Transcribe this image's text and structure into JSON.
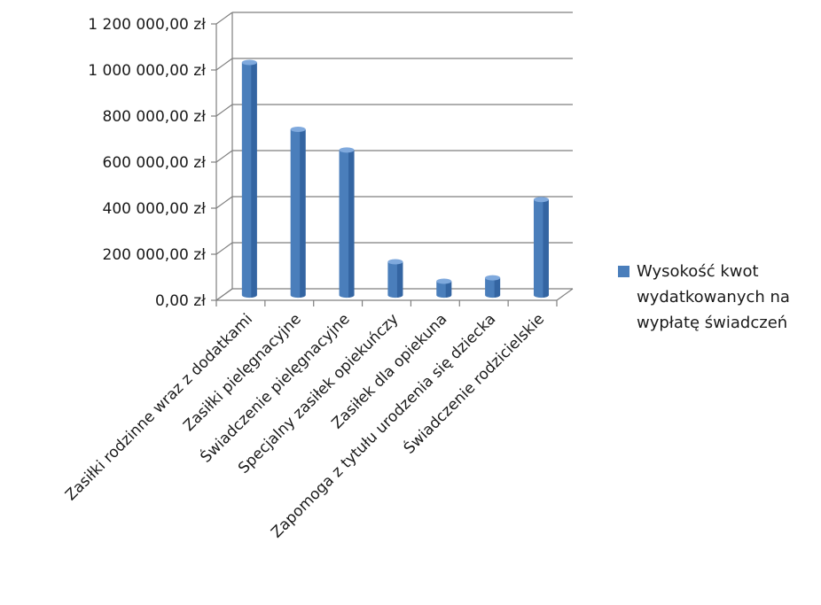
{
  "colors": {
    "bar_front": "#4a7ebb",
    "bar_side": "#2e5d9a",
    "bar_top": "#7fa9dd",
    "grid": "#7f7f7f",
    "text": "#1a1a1a"
  },
  "chart_data": {
    "type": "bar",
    "title": "",
    "xlabel": "",
    "ylabel": "",
    "ylim": [
      0,
      1200000
    ],
    "y_ticks": [
      {
        "value": 0,
        "label": "0,00 zł"
      },
      {
        "value": 200000,
        "label": "200 000,00 zł"
      },
      {
        "value": 400000,
        "label": "400 000,00 zł"
      },
      {
        "value": 600000,
        "label": "600 000,00 zł"
      },
      {
        "value": 800000,
        "label": "800 000,00 zł"
      },
      {
        "value": 1000000,
        "label": "1 000 000,00 zł"
      },
      {
        "value": 1200000,
        "label": "1 200 000,00 zł"
      }
    ],
    "grid": true,
    "legend_position": "right",
    "categories": [
      "Zasiłki rodzinne wraz z dodatkami",
      "Zasiłki pielęgnacyjne",
      "Świadczenie pielęgnacyjne",
      "Specjalny zasiłek opiekuńczy",
      "Zasiłek dla opiekuna",
      "Zapomoga z tytułu urodzenia się dziecka",
      "Świadczenie rodzicielskie"
    ],
    "series": [
      {
        "name": "Wysokość kwot wydatkowanych na wypłatę świadczeń",
        "values": [
          1010000,
          720000,
          630000,
          145000,
          60000,
          75000,
          415000
        ]
      }
    ]
  }
}
